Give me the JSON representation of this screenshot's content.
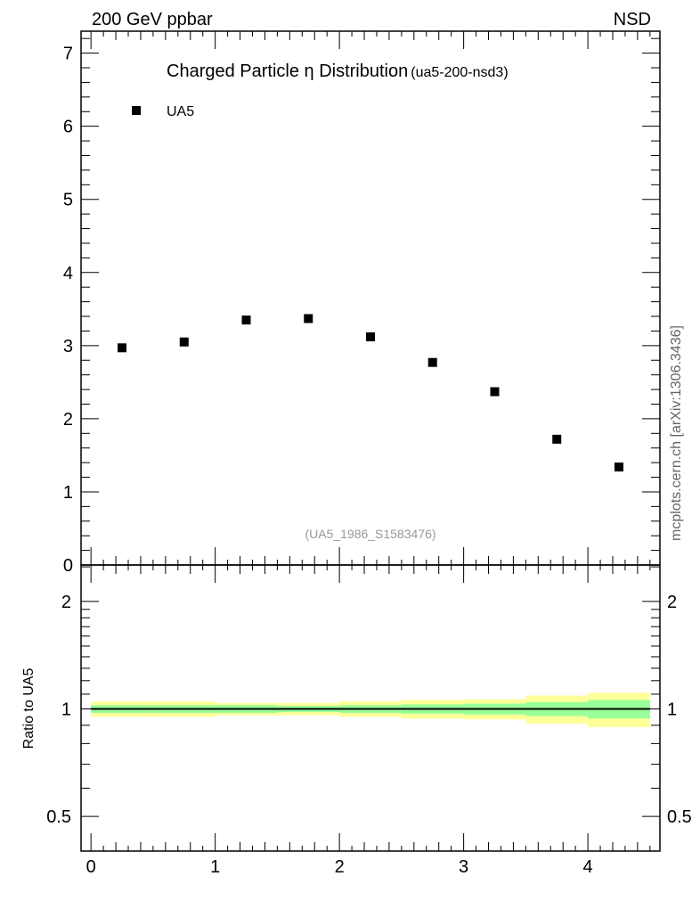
{
  "header": {
    "left": "200 GeV ppbar",
    "right": "NSD"
  },
  "side_label": "mcplots.cern.ch [arXiv:1306.3436]",
  "colors": {
    "marker": "#000000",
    "band_total": "#ffff99",
    "band_stat": "#99ff99"
  },
  "chart_data": [
    {
      "type": "scatter",
      "title": "Charged Particle η Distribution",
      "subtitle": "(ua5-200-nsd3)",
      "annotation": "(UA5_1986_S1583476)",
      "legend": [
        {
          "name": "UA5",
          "marker": "square"
        }
      ],
      "legend_position": "top-left",
      "xlim": [
        -0.08,
        4.58
      ],
      "ylim": [
        0,
        7.3
      ],
      "yticks": [
        0,
        1,
        2,
        3,
        4,
        5,
        6,
        7
      ],
      "ytick_labels": [
        "0",
        "1",
        "2",
        "3",
        "4",
        "5",
        "6",
        "7"
      ],
      "series": [
        {
          "name": "UA5",
          "x": [
            0.25,
            0.75,
            1.25,
            1.75,
            2.25,
            2.75,
            3.25,
            3.75,
            4.25
          ],
          "y": [
            2.97,
            3.05,
            3.35,
            3.37,
            3.12,
            2.77,
            2.37,
            1.72,
            1.34
          ]
        }
      ]
    },
    {
      "type": "area",
      "ylabel": "Ratio to UA5",
      "yscale": "log",
      "ylim": [
        0.4,
        2.53
      ],
      "xlim": [
        -0.08,
        4.58
      ],
      "xticks": [
        0,
        1,
        2,
        3,
        4
      ],
      "xtick_labels": [
        "0",
        "1",
        "2",
        "3",
        "4"
      ],
      "yticks": [
        0.5,
        1,
        2
      ],
      "ytick_labels": [
        "0.5",
        "1",
        "2"
      ],
      "reference_line": 1,
      "bins": [
        [
          0,
          0.5
        ],
        [
          0.5,
          1
        ],
        [
          1,
          1.5
        ],
        [
          1.5,
          2
        ],
        [
          2,
          2.5
        ],
        [
          2.5,
          3
        ],
        [
          3,
          3.5
        ],
        [
          3.5,
          4
        ],
        [
          4,
          4.5
        ]
      ],
      "total_rel_error": [
        0.05,
        0.05,
        0.04,
        0.04,
        0.05,
        0.06,
        0.065,
        0.09,
        0.11
      ],
      "stat_rel_error": [
        0.025,
        0.025,
        0.025,
        0.02,
        0.025,
        0.03,
        0.035,
        0.045,
        0.06
      ]
    }
  ]
}
